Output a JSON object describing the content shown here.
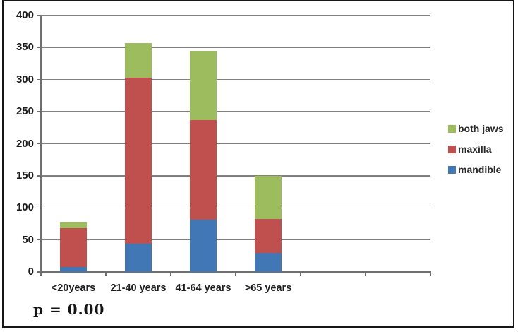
{
  "figure": {
    "p_value_annotation": "p = 0.00"
  },
  "chart_data": {
    "type": "bar",
    "stacked": true,
    "title": "",
    "xlabel": "",
    "ylabel": "",
    "categories": [
      "<20years",
      "21-40 years",
      "41-64 years",
      ">65 years"
    ],
    "series": [
      {
        "name": "mandible",
        "color": "#4277B6",
        "values": [
          8,
          44,
          81,
          30
        ]
      },
      {
        "name": "maxilla",
        "color": "#C0504D",
        "values": [
          60,
          259,
          156,
          53
        ]
      },
      {
        "name": "both jaws",
        "color": "#9CBC5E",
        "values": [
          10,
          54,
          108,
          67
        ]
      }
    ],
    "cumulative_tops": [
      78,
      357,
      345,
      150
    ],
    "ylim": [
      0,
      400
    ],
    "y_ticks": [
      0,
      50,
      100,
      150,
      200,
      250,
      300,
      350,
      400
    ],
    "grid": "horizontal",
    "axis_slots_total": 6,
    "legend_position": "right",
    "legend_order": [
      "both jaws",
      "maxilla",
      "mandible"
    ],
    "annotation": "p = 0.00"
  }
}
